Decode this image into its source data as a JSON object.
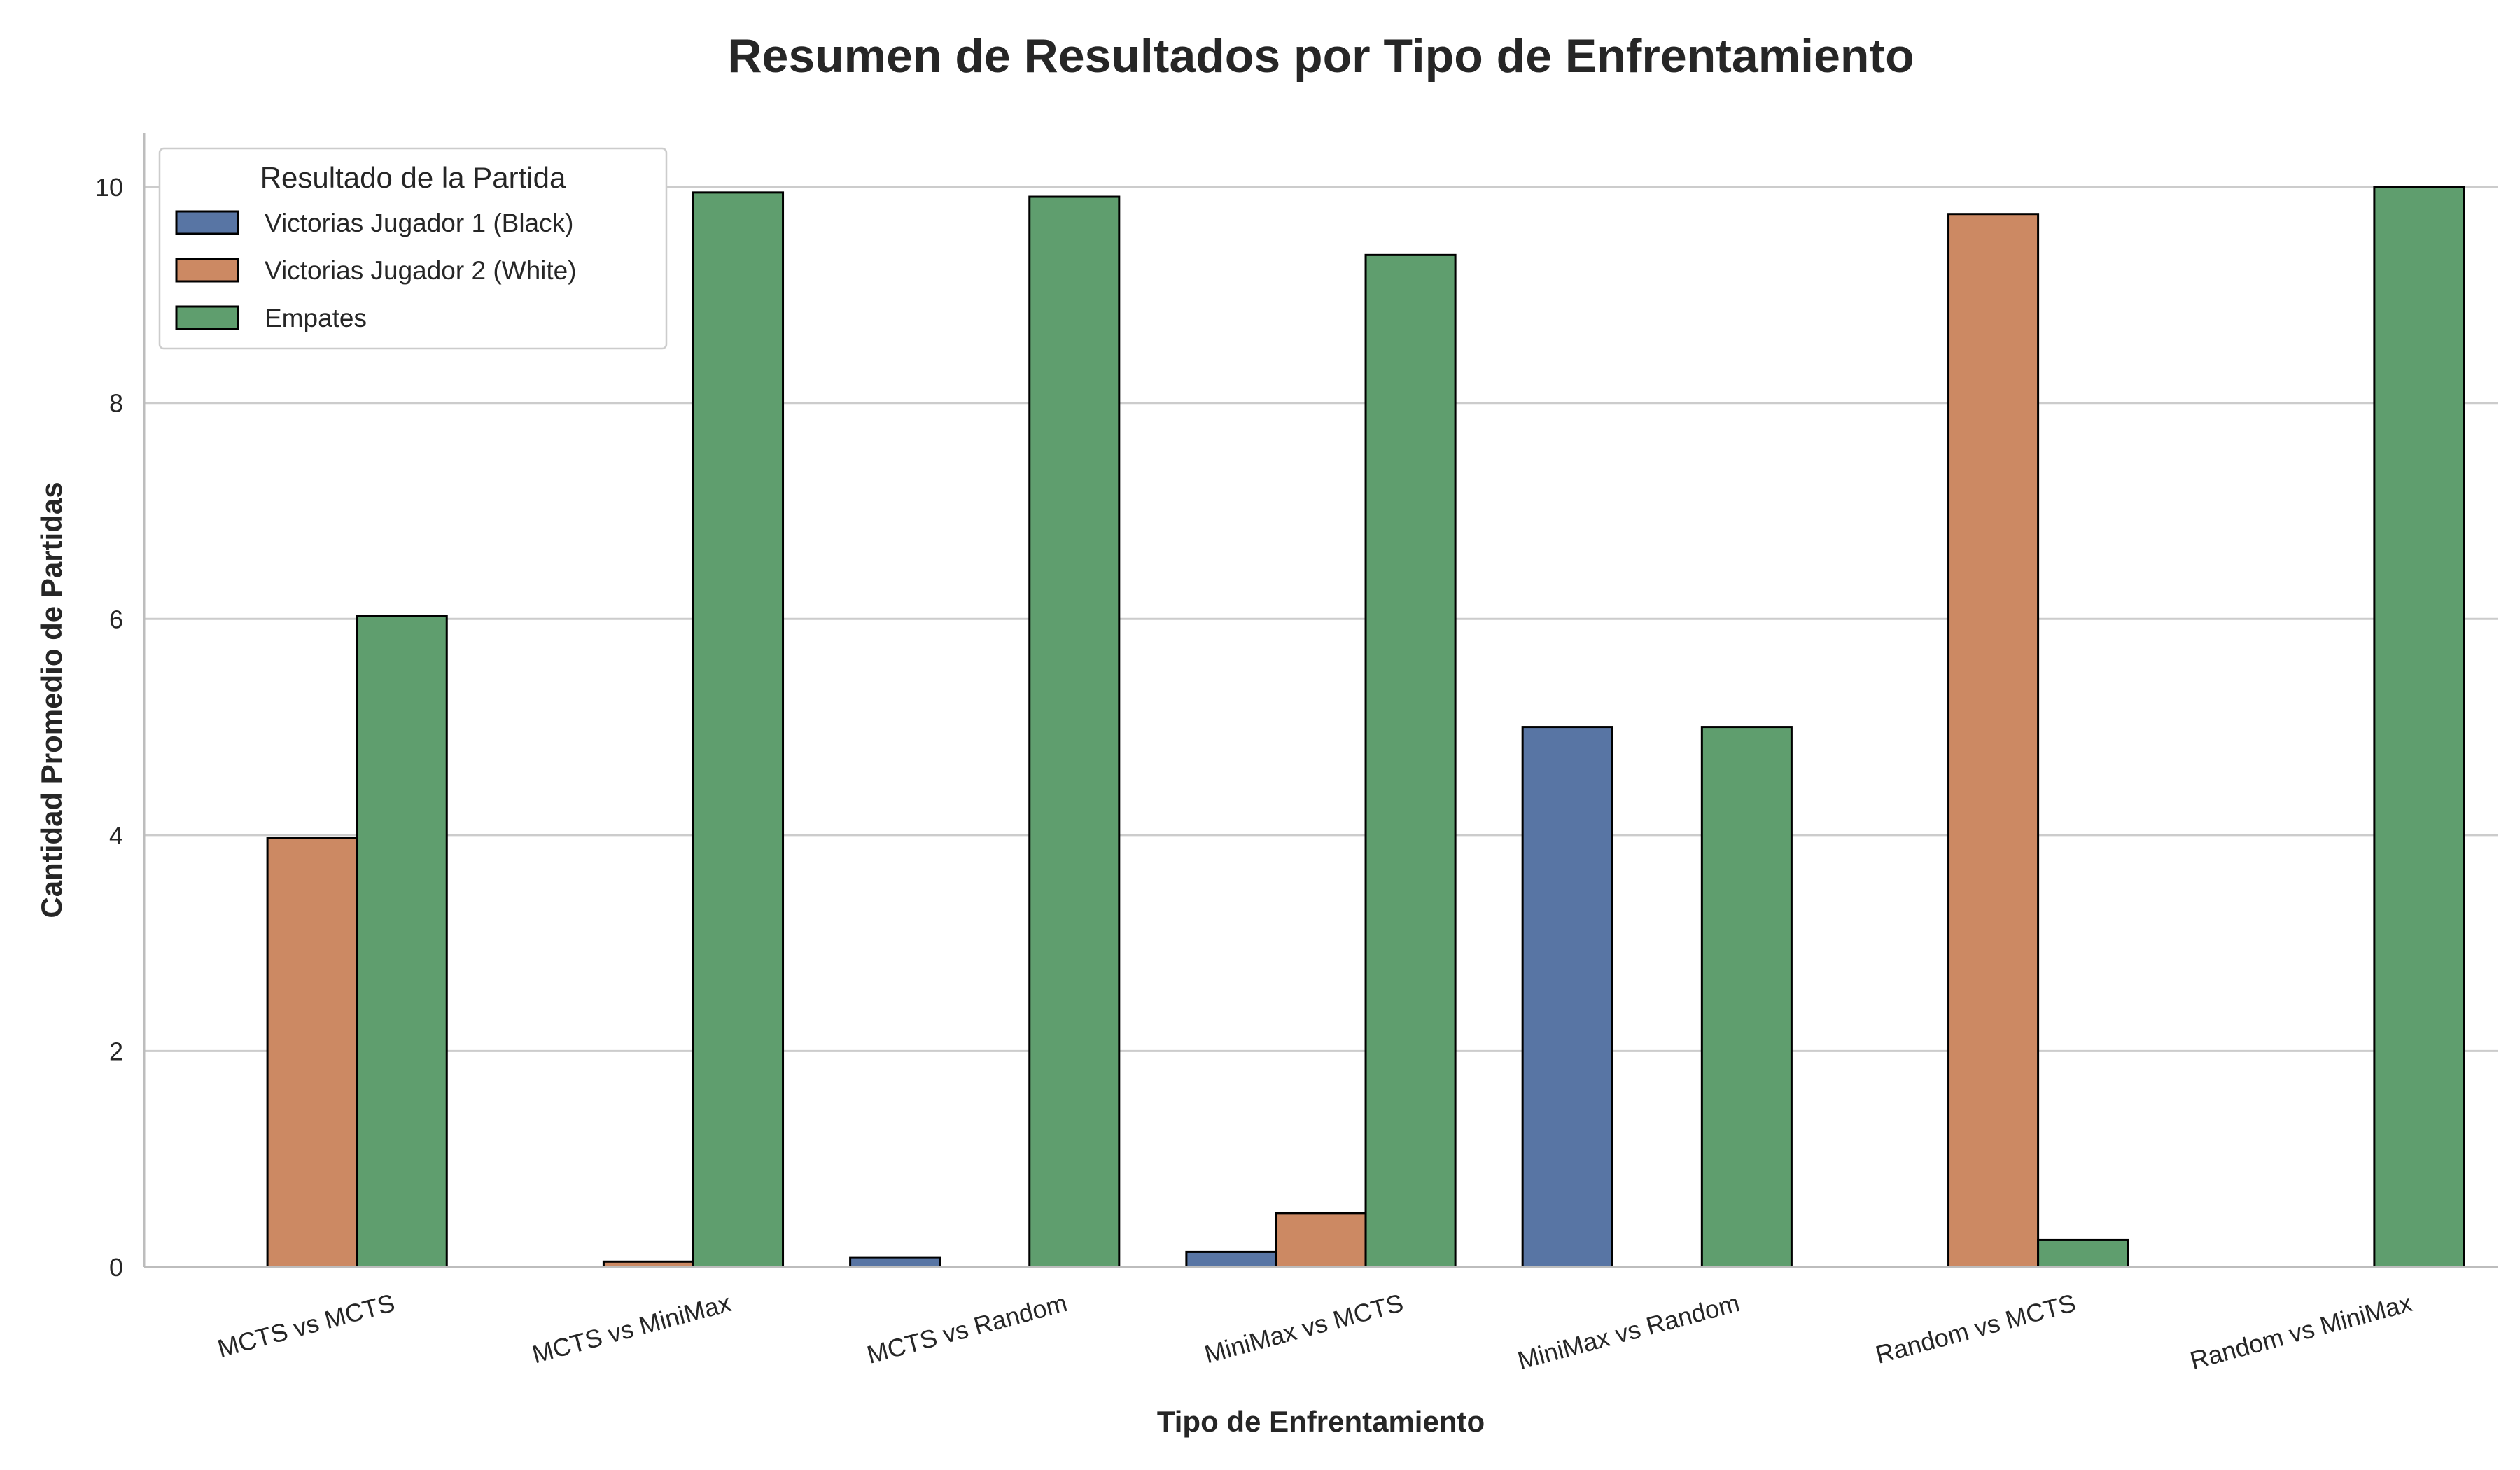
{
  "chart_data": {
    "type": "bar",
    "title": "Resumen de Resultados por Tipo de Enfrentamiento",
    "xlabel": "Tipo de Enfrentamiento",
    "ylabel": "Cantidad Promedio de Partidas",
    "ylim": [
      0,
      10.5
    ],
    "yticks": [
      0,
      2,
      4,
      6,
      8,
      10
    ],
    "grid": "horizontal",
    "legend_position": "top-left",
    "legend_title": "Resultado de la Partida",
    "categories": [
      "MCTS vs MCTS",
      "MCTS vs MiniMax",
      "MCTS vs Random",
      "MiniMax vs MCTS",
      "MiniMax vs Random",
      "Random vs MCTS",
      "Random vs MiniMax"
    ],
    "series": [
      {
        "name": "Victorias Jugador 1 (Black)",
        "color": "#5875a4",
        "values": [
          0,
          0,
          0.09,
          0.14,
          5.0,
          0,
          0
        ]
      },
      {
        "name": "Victorias Jugador 2 (White)",
        "color": "#cc8963",
        "values": [
          3.97,
          0.05,
          0,
          0.5,
          0,
          9.75,
          0
        ]
      },
      {
        "name": "Empates",
        "color": "#5f9e6e",
        "values": [
          6.03,
          9.95,
          9.91,
          9.37,
          5.0,
          0.25,
          10.0
        ]
      }
    ]
  }
}
